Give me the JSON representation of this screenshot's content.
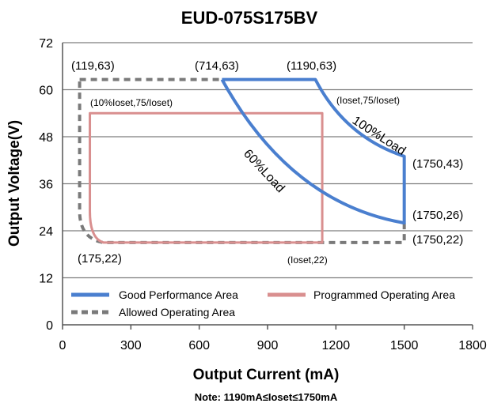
{
  "chart_data": {
    "type": "line",
    "title": "EUD-075S175BV",
    "xlabel": "Output Current (mA)",
    "ylabel": "Output Voltage(V)",
    "xlim": [
      0,
      1800
    ],
    "ylim": [
      0,
      72
    ],
    "x_ticks": [
      "0",
      "300",
      "600",
      "900",
      "1200",
      "1500",
      "1800"
    ],
    "y_ticks": [
      "0",
      "12",
      "24",
      "36",
      "48",
      "60",
      "72"
    ],
    "grid": "horizontal",
    "legend_position": "bottom-inside",
    "series": [
      {
        "name": "Good Performance Area",
        "color": "#4a7fcf",
        "style": "solid",
        "points": [
          [
            700,
            62.6
          ],
          [
            1110,
            62.6
          ],
          [
            1190,
            56
          ],
          [
            1500,
            43
          ],
          [
            1500,
            26
          ],
          [
            1250,
            30
          ],
          [
            1090,
            33
          ],
          [
            950,
            38
          ],
          [
            820,
            46
          ],
          [
            700,
            62.6
          ]
        ]
      },
      {
        "name": "Programmed Operating Area",
        "color": "#d98f8f",
        "style": "solid",
        "points": [
          [
            120,
            54
          ],
          [
            1140,
            54
          ],
          [
            1140,
            21
          ],
          [
            180,
            21
          ],
          [
            120,
            29
          ],
          [
            120,
            54
          ]
        ]
      },
      {
        "name": "Allowed Operating Area",
        "color": "#7a7a7a",
        "style": "dashed",
        "points": [
          [
            75,
            62.6
          ],
          [
            700,
            62.6
          ],
          [
            1500,
            21
          ],
          [
            180,
            21
          ],
          [
            75,
            28
          ],
          [
            75,
            62.6
          ]
        ]
      }
    ],
    "annotations": {
      "p1": "(119,63)",
      "p2": "(714,63)",
      "p3": "(1190,63)",
      "p4": "(10%Ioset,75/Ioset)",
      "p5": "(Ioset,75/Ioset)",
      "p6": "(1750,43)",
      "p7": "(1750,26)",
      "p8": "(1750,22)",
      "p9": "(175,22)",
      "p10": "(Ioset,22)",
      "load100": "100%Load",
      "load60": "60%Load"
    },
    "note": "Note:  1190mA≤Ioset≤1750mA",
    "legend": [
      "Good Performance Area",
      "Programmed Operating Area",
      "Allowed Operating Area"
    ]
  }
}
